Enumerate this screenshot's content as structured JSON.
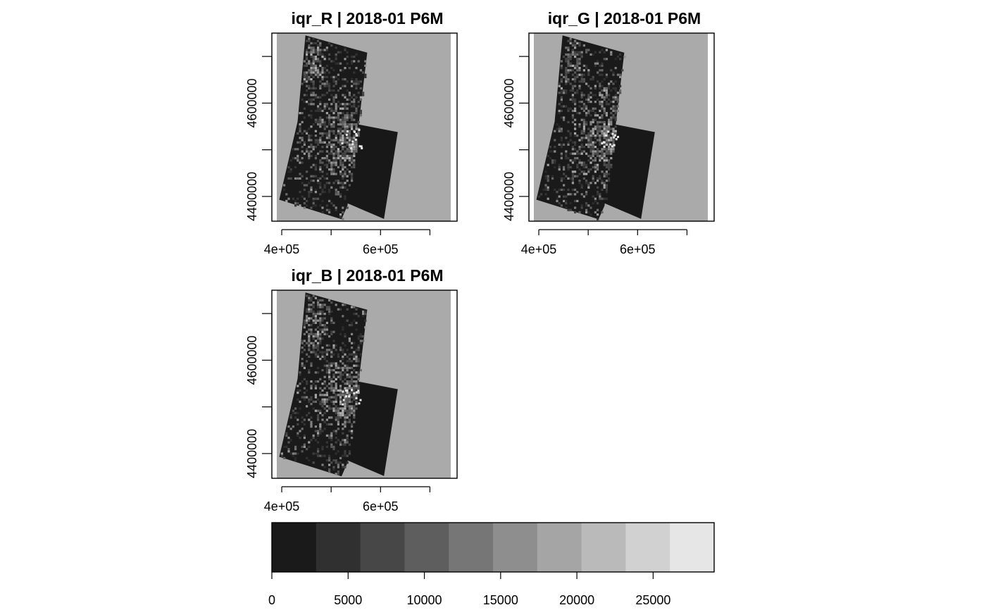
{
  "chart_data": [
    {
      "type": "heatmap",
      "title": "iqr_R | 2018-01 P6M",
      "xticks": [
        "4e+05",
        "6e+05"
      ],
      "yticks": [
        "4600000",
        "4400000"
      ],
      "x_tick_values": [
        400000,
        500000,
        600000,
        700000
      ],
      "y_tick_values": [
        4400000,
        4500000,
        4600000,
        4700000
      ],
      "x_range": [
        380000,
        755000
      ],
      "y_range": [
        4347000,
        4750000
      ],
      "background_color": "#aaaaaa"
    },
    {
      "type": "heatmap",
      "title": "iqr_G | 2018-01 P6M",
      "xticks": [
        "4e+05",
        "6e+05"
      ],
      "yticks": [
        "4600000",
        "4400000"
      ],
      "x_tick_values": [
        400000,
        500000,
        600000,
        700000
      ],
      "y_tick_values": [
        4400000,
        4500000,
        4600000,
        4700000
      ],
      "x_range": [
        380000,
        755000
      ],
      "y_range": [
        4347000,
        4750000
      ],
      "background_color": "#aaaaaa"
    },
    {
      "type": "heatmap",
      "title": "iqr_B | 2018-01 P6M",
      "xticks": [
        "4e+05",
        "6e+05"
      ],
      "yticks": [
        "4600000",
        "4400000"
      ],
      "x_tick_values": [
        400000,
        500000,
        600000,
        700000
      ],
      "y_tick_values": [
        4400000,
        4500000,
        4600000,
        4700000
      ],
      "x_range": [
        380000,
        755000
      ],
      "y_range": [
        4347000,
        4750000
      ],
      "background_color": "#aaaaaa"
    }
  ],
  "legend": {
    "range": [
      0,
      29000
    ],
    "ticks": [
      0,
      5000,
      10000,
      15000,
      20000,
      25000
    ],
    "tick_labels": [
      "0",
      "5000",
      "10000",
      "15000",
      "20000",
      "25000"
    ],
    "colors": [
      "#1a1a1a",
      "#303030",
      "#474747",
      "#5e5e5e",
      "#767676",
      "#8e8e8e",
      "#a5a5a5",
      "#bababa",
      "#d1d1d1",
      "#e6e6e6"
    ]
  }
}
